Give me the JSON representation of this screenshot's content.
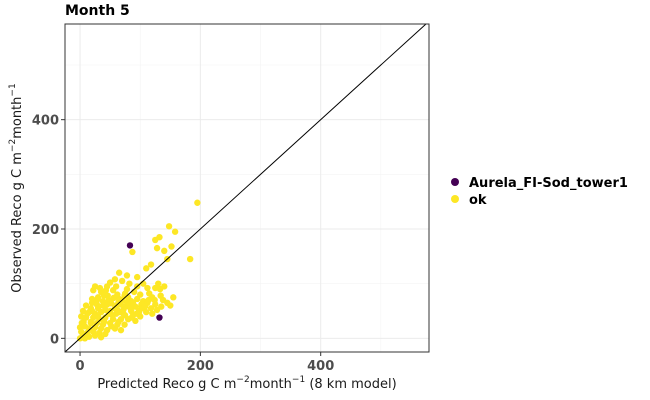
{
  "chart_data": {
    "type": "scatter",
    "title": "Month 5",
    "xlabel": {
      "main": "Predicted Reco g C m",
      "sup1": "−2",
      "mid": "month",
      "sup2": "−1",
      "suffix": " (8 km model)"
    },
    "ylabel": {
      "main": "Observed Reco g C m",
      "sup1": "−2",
      "mid": "month",
      "sup2": "−1"
    },
    "xlim": [
      -25,
      580
    ],
    "ylim": [
      -25,
      575
    ],
    "x_ticks": [
      0,
      200,
      400
    ],
    "y_ticks": [
      0,
      200,
      400
    ],
    "x_tick_labels": [
      "0",
      "200",
      "400"
    ],
    "y_tick_labels": [
      "0",
      "200",
      "400"
    ],
    "grid": true,
    "reference_line": "y = x",
    "legend": {
      "position": "right"
    },
    "series": [
      {
        "name": "Aurela_FI-Sod_tower1",
        "color": "#440154",
        "points": [
          [
            83,
            170
          ],
          [
            132,
            38
          ]
        ]
      },
      {
        "name": "ok",
        "color": "#FDE725",
        "points": [
          [
            195,
            248
          ],
          [
            148,
            205
          ],
          [
            158,
            195
          ],
          [
            132,
            185
          ],
          [
            125,
            180
          ],
          [
            152,
            168
          ],
          [
            183,
            145
          ],
          [
            128,
            165
          ],
          [
            87,
            158
          ],
          [
            140,
            160
          ],
          [
            145,
            145
          ],
          [
            110,
            128
          ],
          [
            118,
            135
          ],
          [
            65,
            120
          ],
          [
            78,
            115
          ],
          [
            58,
            108
          ],
          [
            95,
            112
          ],
          [
            70,
            105
          ],
          [
            50,
            102
          ],
          [
            82,
            100
          ],
          [
            130,
            100
          ],
          [
            125,
            92
          ],
          [
            140,
            95
          ],
          [
            133,
            90
          ],
          [
            60,
            95
          ],
          [
            45,
            95
          ],
          [
            25,
            95
          ],
          [
            22,
            88
          ],
          [
            35,
            85
          ],
          [
            55,
            88
          ],
          [
            75,
            82
          ],
          [
            100,
            80
          ],
          [
            115,
            82
          ],
          [
            120,
            75
          ],
          [
            138,
            70
          ],
          [
            145,
            65
          ],
          [
            150,
            60
          ],
          [
            155,
            75
          ],
          [
            40,
            78
          ],
          [
            30,
            75
          ],
          [
            20,
            72
          ],
          [
            48,
            70
          ],
          [
            65,
            72
          ],
          [
            85,
            68
          ],
          [
            95,
            72
          ],
          [
            105,
            68
          ],
          [
            112,
            65
          ],
          [
            125,
            62
          ],
          [
            135,
            58
          ],
          [
            20,
            65
          ],
          [
            28,
            62
          ],
          [
            38,
            60
          ],
          [
            52,
            64
          ],
          [
            68,
            62
          ],
          [
            82,
            60
          ],
          [
            92,
            58
          ],
          [
            102,
            58
          ],
          [
            118,
            55
          ],
          [
            128,
            52
          ],
          [
            10,
            60
          ],
          [
            18,
            55
          ],
          [
            30,
            55
          ],
          [
            42,
            52
          ],
          [
            58,
            55
          ],
          [
            72,
            52
          ],
          [
            85,
            50
          ],
          [
            98,
            50
          ],
          [
            110,
            48
          ],
          [
            120,
            45
          ],
          [
            5,
            50
          ],
          [
            15,
            48
          ],
          [
            25,
            45
          ],
          [
            35,
            48
          ],
          [
            48,
            45
          ],
          [
            60,
            45
          ],
          [
            75,
            42
          ],
          [
            88,
            42
          ],
          [
            100,
            40
          ],
          [
            2,
            40
          ],
          [
            10,
            38
          ],
          [
            22,
            38
          ],
          [
            32,
            35
          ],
          [
            42,
            38
          ],
          [
            55,
            35
          ],
          [
            68,
            35
          ],
          [
            80,
            35
          ],
          [
            92,
            32
          ],
          [
            6,
            30
          ],
          [
            18,
            28
          ],
          [
            28,
            28
          ],
          [
            38,
            25
          ],
          [
            50,
            28
          ],
          [
            62,
            25
          ],
          [
            74,
            25
          ],
          [
            0,
            20
          ],
          [
            8,
            22
          ],
          [
            15,
            18
          ],
          [
            25,
            20
          ],
          [
            35,
            18
          ],
          [
            45,
            15
          ],
          [
            58,
            18
          ],
          [
            68,
            15
          ],
          [
            2,
            12
          ],
          [
            12,
            10
          ],
          [
            22,
            12
          ],
          [
            32,
            10
          ],
          [
            42,
            8
          ],
          [
            5,
            5
          ],
          [
            15,
            3
          ],
          [
            25,
            5
          ],
          [
            35,
            2
          ],
          [
            0,
            0
          ],
          [
            8,
            0
          ],
          [
            18,
            30
          ],
          [
            45,
            62
          ],
          [
            62,
            80
          ],
          [
            78,
            90
          ],
          [
            90,
            85
          ],
          [
            112,
            92
          ],
          [
            54,
            42
          ],
          [
            66,
            48
          ],
          [
            76,
            58
          ],
          [
            88,
            65
          ],
          [
            102,
            62
          ],
          [
            40,
            30
          ],
          [
            30,
            40
          ],
          [
            50,
            50
          ],
          [
            60,
            60
          ],
          [
            70,
            70
          ],
          [
            80,
            75
          ],
          [
            95,
            95
          ],
          [
            105,
            100
          ],
          [
            3,
            28
          ],
          [
            12,
            45
          ],
          [
            20,
            50
          ],
          [
            28,
            70
          ],
          [
            38,
            68
          ],
          [
            46,
            78
          ],
          [
            56,
            74
          ],
          [
            64,
            66
          ],
          [
            74,
            78
          ],
          [
            84,
            55
          ],
          [
            94,
            45
          ],
          [
            104,
            55
          ],
          [
            114,
            70
          ],
          [
            124,
            70
          ],
          [
            134,
            78
          ],
          [
            52,
            22
          ],
          [
            64,
            30
          ],
          [
            72,
            45
          ],
          [
            86,
            38
          ],
          [
            98,
            48
          ],
          [
            108,
            58
          ],
          [
            43,
            88
          ],
          [
            33,
            92
          ],
          [
            62,
            52
          ],
          [
            78,
            66
          ]
        ]
      }
    ]
  }
}
